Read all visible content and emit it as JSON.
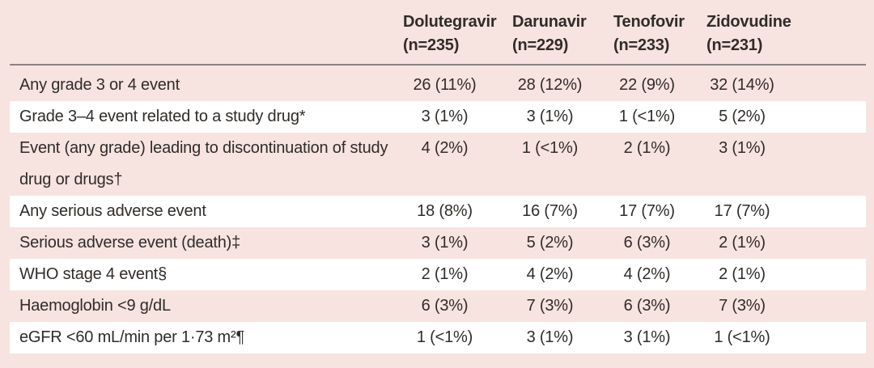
{
  "colors": {
    "background_pink": "#f7e3e0",
    "stripe_white": "#ffffff",
    "text": "#302c29",
    "header_rule": "#8b8284"
  },
  "table": {
    "columns": [
      {
        "drug": "Dolutegravir",
        "n": "(n=235)"
      },
      {
        "drug": "Darunavir",
        "n": "(n=229)"
      },
      {
        "drug": "Tenofovir",
        "n": "(n=233)"
      },
      {
        "drug": "Zidovudine",
        "n": "(n=231)"
      }
    ],
    "rows": [
      {
        "label": "Any grade 3 or 4 event",
        "values": [
          "26 (11%)",
          "28 (12%)",
          "22 (9%)",
          "32 (14%)"
        ]
      },
      {
        "label": "Grade 3–4 event related to a study drug*",
        "values": [
          "3 (1%)",
          "3 (1%)",
          "1 (<1%)",
          "5 (2%)"
        ]
      },
      {
        "label": "Event (any grade) leading to discontinuation of study drug or drugs†",
        "values": [
          "4 (2%)",
          "1 (<1%)",
          "2 (1%)",
          "3 (1%)"
        ]
      },
      {
        "label": "Any serious adverse event",
        "values": [
          "18 (8%)",
          "16 (7%)",
          "17 (7%)",
          "17 (7%)"
        ]
      },
      {
        "label": "Serious adverse event (death)‡",
        "values": [
          "3 (1%)",
          "5 (2%)",
          "6 (3%)",
          "2 (1%)"
        ]
      },
      {
        "label": "WHO stage 4 event§",
        "values": [
          "2 (1%)",
          "4 (2%)",
          "4 (2%)",
          "2 (1%)"
        ]
      },
      {
        "label": "Haemoglobin <9 g/dL",
        "values": [
          "6 (3%)",
          "7 (3%)",
          "6 (3%)",
          "7 (3%)"
        ]
      },
      {
        "label": "eGFR <60 mL/min per 1·73 m²¶",
        "values": [
          "1 (<1%)",
          "3 (1%)",
          "3 (1%)",
          "1 (<1%)"
        ]
      }
    ]
  },
  "chart_data": {
    "type": "table",
    "columns": [
      "",
      "Dolutegravir (n=235)",
      "Darunavir (n=229)",
      "Tenofovir (n=233)",
      "Zidovudine (n=231)"
    ],
    "rows": [
      [
        "Any grade 3 or 4 event",
        "26 (11%)",
        "28 (12%)",
        "22 (9%)",
        "32 (14%)"
      ],
      [
        "Grade 3–4 event related to a study drug*",
        "3 (1%)",
        "3 (1%)",
        "1 (<1%)",
        "5 (2%)"
      ],
      [
        "Event (any grade) leading to discontinuation of study drug or drugs†",
        "4 (2%)",
        "1 (<1%)",
        "2 (1%)",
        "3 (1%)"
      ],
      [
        "Any serious adverse event",
        "18 (8%)",
        "16 (7%)",
        "17 (7%)",
        "17 (7%)"
      ],
      [
        "Serious adverse event (death)‡",
        "3 (1%)",
        "5 (2%)",
        "6 (3%)",
        "2 (1%)"
      ],
      [
        "WHO stage 4 event§",
        "2 (1%)",
        "4 (2%)",
        "4 (2%)",
        "2 (1%)"
      ],
      [
        "Haemoglobin <9 g/dL",
        "6 (3%)",
        "7 (3%)",
        "6 (3%)",
        "7 (3%)"
      ],
      [
        "eGFR <60 mL/min per 1·73 m²¶",
        "1 (<1%)",
        "3 (1%)",
        "3 (1%)",
        "1 (<1%)"
      ]
    ]
  }
}
